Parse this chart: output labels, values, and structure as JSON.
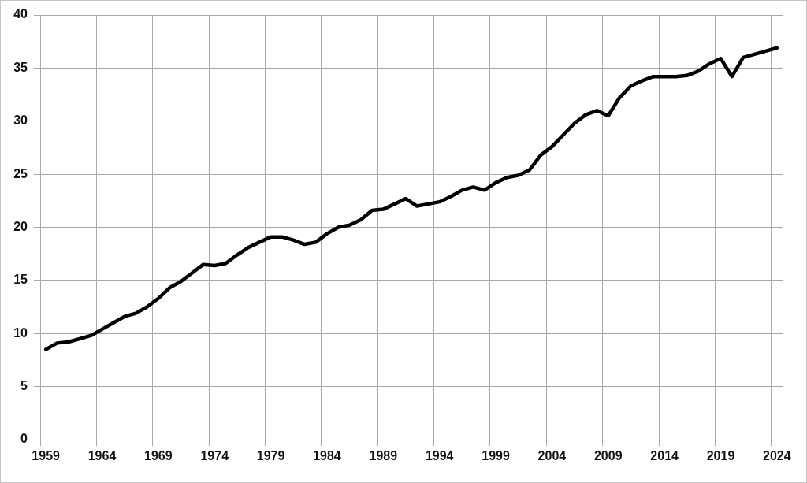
{
  "chart_data": {
    "type": "line",
    "categories": [
      "1959",
      null,
      null,
      null,
      null,
      "1964",
      null,
      null,
      null,
      null,
      "1969",
      null,
      null,
      null,
      null,
      "1974",
      null,
      null,
      null,
      null,
      "1979",
      null,
      null,
      null,
      null,
      "1984",
      null,
      null,
      null,
      null,
      "1989",
      null,
      null,
      null,
      null,
      "1994",
      null,
      null,
      null,
      null,
      "1999",
      null,
      null,
      null,
      null,
      "2004",
      null,
      null,
      null,
      null,
      "2009",
      null,
      null,
      null,
      null,
      "2014",
      null,
      null,
      null,
      null,
      "2019",
      null,
      null,
      null,
      null,
      "2024"
    ],
    "series": [
      {
        "color": "#000000",
        "values": [
          8.5,
          9.1,
          9.2,
          9.5,
          9.8,
          10.4,
          11.0,
          11.6,
          11.9,
          12.5,
          13.3,
          14.3,
          14.9,
          15.7,
          16.5,
          16.4,
          16.6,
          17.4,
          18.1,
          18.6,
          19.1,
          19.1,
          18.8,
          18.4,
          18.6,
          19.4,
          20.0,
          20.2,
          20.7,
          21.6,
          21.7,
          22.2,
          22.7,
          22.0,
          22.2,
          22.4,
          22.9,
          23.5,
          23.8,
          23.5,
          24.2,
          24.7,
          24.9,
          25.4,
          26.8,
          27.6,
          28.7,
          29.8,
          30.6,
          31.0,
          30.5,
          32.2,
          33.3,
          33.8,
          34.2,
          34.2,
          34.2,
          34.3,
          34.7,
          35.4,
          35.9,
          34.2,
          36.0,
          36.3,
          36.6,
          36.9
        ]
      }
    ],
    "ylim": [
      0,
      40
    ],
    "yticks": [
      0,
      5,
      10,
      15,
      20,
      25,
      30,
      35,
      40
    ],
    "grid": true,
    "marker": "none",
    "line_style": "solid"
  }
}
